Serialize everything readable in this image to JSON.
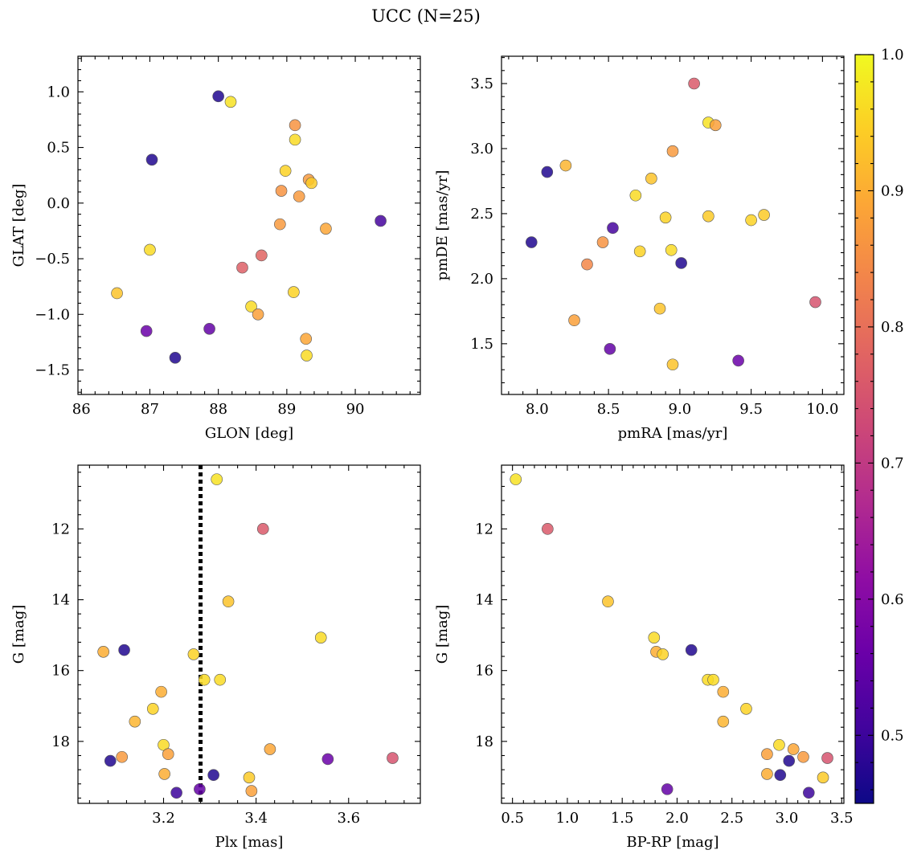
{
  "figure": {
    "title": "UCC (N=25)",
    "colorbar": {
      "min": 0.45,
      "max": 1.0,
      "ticks": [
        0.5,
        0.6,
        0.7,
        0.8,
        0.9,
        1.0
      ],
      "tick_labels": [
        "0.5",
        "0.6",
        "0.7",
        "0.8",
        "0.9",
        "1.0"
      ],
      "colormap": "plasma"
    }
  },
  "chart_data": [
    {
      "type": "scatter",
      "xlabel": "GLON [deg]",
      "ylabel": "GLAT [deg]",
      "xlim": [
        85.95,
        90.95
      ],
      "ylim": [
        -1.72,
        1.32
      ],
      "xticks": [
        86,
        87,
        88,
        89,
        90
      ],
      "xtick_labels": [
        "86",
        "87",
        "88",
        "89",
        "90"
      ],
      "yticks": [
        -1.5,
        -1.0,
        -0.5,
        0.0,
        0.5,
        1.0
      ],
      "ytick_labels": [
        "−1.5",
        "−1.0",
        "−0.5",
        "0.0",
        "0.5",
        "1.0"
      ],
      "x": [
        88.0,
        88.18,
        87.03,
        89.12,
        89.12,
        88.98,
        89.32,
        89.36,
        88.92,
        89.18,
        90.37,
        88.9,
        89.57,
        87.0,
        86.52,
        88.35,
        88.63,
        89.1,
        88.48,
        88.58,
        86.95,
        87.87,
        89.28,
        87.37,
        89.29
      ],
      "y": [
        0.96,
        0.91,
        0.39,
        0.7,
        0.57,
        0.29,
        0.21,
        0.18,
        0.11,
        0.06,
        -0.16,
        -0.19,
        -0.23,
        -0.42,
        -0.81,
        -0.58,
        -0.47,
        -0.8,
        -0.93,
        -1.0,
        -1.15,
        -1.13,
        -1.22,
        -1.39,
        -1.37
      ],
      "c": [
        0.47,
        0.97,
        0.47,
        0.86,
        0.96,
        0.95,
        0.87,
        0.94,
        0.86,
        0.87,
        0.51,
        0.87,
        0.89,
        0.96,
        0.93,
        0.77,
        0.78,
        0.95,
        0.96,
        0.88,
        0.56,
        0.55,
        0.89,
        0.47,
        0.96
      ]
    },
    {
      "type": "scatter",
      "xlabel": "pmRA [mas/yr]",
      "ylabel": "pmDE [mas/yr]",
      "xlim": [
        7.75,
        10.15
      ],
      "ylim": [
        1.11,
        3.71
      ],
      "xticks": [
        8.0,
        8.5,
        9.0,
        9.5,
        10.0
      ],
      "xtick_labels": [
        "8.0",
        "8.5",
        "9.0",
        "9.5",
        "10.0"
      ],
      "yticks": [
        1.5,
        2.0,
        2.5,
        3.0,
        3.5
      ],
      "ytick_labels": [
        "1.5",
        "2.0",
        "2.5",
        "3.0",
        "3.5"
      ],
      "x": [
        9.1,
        9.2,
        9.25,
        8.95,
        8.07,
        8.2,
        8.8,
        8.69,
        9.59,
        9.2,
        8.9,
        9.5,
        8.53,
        8.46,
        7.96,
        8.72,
        8.94,
        9.01,
        8.35,
        9.95,
        8.86,
        8.26,
        8.51,
        9.41,
        8.95
      ],
      "y": [
        3.5,
        3.2,
        3.18,
        2.98,
        2.82,
        2.87,
        2.77,
        2.64,
        2.49,
        2.48,
        2.47,
        2.45,
        2.39,
        2.28,
        2.28,
        2.21,
        2.22,
        2.12,
        2.11,
        1.82,
        1.77,
        1.68,
        1.46,
        1.37,
        1.34
      ],
      "c": [
        0.76,
        0.97,
        0.88,
        0.87,
        0.47,
        0.91,
        0.93,
        0.96,
        0.94,
        0.94,
        0.95,
        0.95,
        0.51,
        0.86,
        0.47,
        0.95,
        0.96,
        0.47,
        0.84,
        0.75,
        0.93,
        0.88,
        0.55,
        0.56,
        0.93
      ]
    },
    {
      "type": "scatter",
      "xlabel": "Plx [mas]",
      "ylabel": "G [mag]",
      "y_inverted": true,
      "xlim": [
        3.015,
        3.755
      ],
      "ylim": [
        19.75,
        10.2
      ],
      "xticks": [
        3.2,
        3.4,
        3.6
      ],
      "xtick_labels": [
        "3.2",
        "3.4",
        "3.6"
      ],
      "yticks": [
        12,
        14,
        16,
        18
      ],
      "ytick_labels": [
        "12",
        "14",
        "16",
        "18"
      ],
      "vline": 3.28,
      "x": [
        3.315,
        3.415,
        3.34,
        3.54,
        3.07,
        3.115,
        3.265,
        3.288,
        3.322,
        3.195,
        3.177,
        3.138,
        3.2,
        3.21,
        3.43,
        3.085,
        3.11,
        3.555,
        3.695,
        3.202,
        3.308,
        3.385,
        3.228,
        3.278,
        3.39
      ],
      "y": [
        10.6,
        12.0,
        14.05,
        15.07,
        15.47,
        15.42,
        15.54,
        16.26,
        16.26,
        16.6,
        17.08,
        17.44,
        18.1,
        18.36,
        18.22,
        18.55,
        18.44,
        18.5,
        18.47,
        18.92,
        18.95,
        19.02,
        19.45,
        19.35,
        19.4
      ],
      "c": [
        0.97,
        0.76,
        0.93,
        0.96,
        0.9,
        0.47,
        0.95,
        0.96,
        0.96,
        0.9,
        0.95,
        0.91,
        0.96,
        0.88,
        0.89,
        0.47,
        0.87,
        0.56,
        0.75,
        0.9,
        0.47,
        0.94,
        0.5,
        0.55,
        0.88
      ]
    },
    {
      "type": "scatter",
      "xlabel": "BP-RP [mag]",
      "ylabel": "G [mag]",
      "y_inverted": true,
      "xlim": [
        0.4,
        3.52
      ],
      "ylim": [
        19.75,
        10.2
      ],
      "xticks": [
        0.5,
        1.0,
        1.5,
        2.0,
        2.5,
        3.0,
        3.5
      ],
      "xtick_labels": [
        "0.5",
        "1.0",
        "1.5",
        "2.0",
        "2.5",
        "3.0",
        "3.5"
      ],
      "yticks": [
        12,
        14,
        16,
        18
      ],
      "ytick_labels": [
        "12",
        "14",
        "16",
        "18"
      ],
      "x": [
        0.53,
        0.82,
        1.37,
        1.79,
        1.81,
        1.87,
        2.13,
        2.28,
        2.33,
        2.42,
        2.63,
        2.42,
        2.93,
        2.82,
        3.06,
        3.02,
        3.15,
        3.37,
        2.82,
        2.94,
        3.33,
        1.91,
        3.2
      ],
      "y": [
        10.6,
        12.0,
        14.05,
        15.07,
        15.47,
        15.54,
        15.42,
        16.26,
        16.26,
        16.6,
        17.08,
        17.44,
        18.1,
        18.36,
        18.22,
        18.55,
        18.44,
        18.47,
        18.92,
        18.95,
        19.02,
        19.35,
        19.45
      ],
      "c": [
        0.97,
        0.76,
        0.93,
        0.96,
        0.9,
        0.95,
        0.47,
        0.96,
        0.96,
        0.9,
        0.95,
        0.91,
        0.96,
        0.88,
        0.89,
        0.47,
        0.87,
        0.75,
        0.9,
        0.47,
        0.94,
        0.55,
        0.5
      ]
    }
  ]
}
